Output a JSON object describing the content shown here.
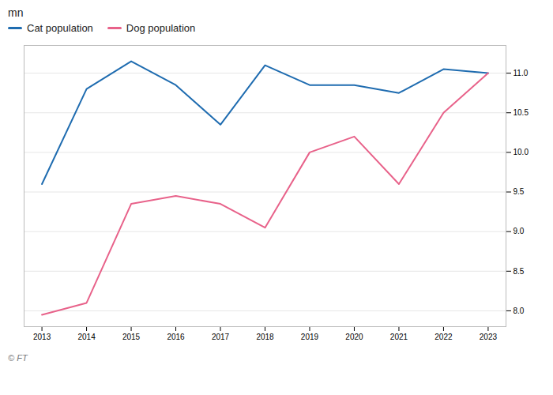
{
  "chart_data": {
    "type": "line",
    "ylabel": "mn",
    "x": [
      2013,
      2014,
      2015,
      2016,
      2017,
      2018,
      2019,
      2020,
      2021,
      2022,
      2023
    ],
    "series": [
      {
        "name": "Cat population",
        "color": "#1f6cb0",
        "values": [
          9.6,
          10.8,
          11.15,
          10.85,
          10.35,
          11.1,
          10.85,
          10.85,
          10.75,
          11.05,
          11.0
        ]
      },
      {
        "name": "Dog population",
        "color": "#e8628a",
        "values": [
          7.95,
          8.1,
          9.35,
          9.45,
          9.35,
          9.05,
          10.0,
          10.2,
          9.6,
          10.5,
          11.0
        ]
      }
    ],
    "xlim": [
      2012.6,
      2023.4
    ],
    "xticks": [
      2013,
      2014,
      2015,
      2016,
      2017,
      2018,
      2019,
      2020,
      2021,
      2022,
      2023
    ],
    "ylim": [
      7.8,
      11.35
    ],
    "yticks": [
      {
        "value": 8.0,
        "label": "8.0"
      },
      {
        "value": 8.5,
        "label": "8.5"
      },
      {
        "value": 9.0,
        "label": "9.0"
      },
      {
        "value": 9.5,
        "label": "9.5"
      },
      {
        "value": 10.0,
        "label": "10.0"
      },
      {
        "value": 10.5,
        "label": "10.5"
      },
      {
        "value": 11.0,
        "label": "11.0"
      }
    ],
    "grid": true,
    "legend": "upper left",
    "annotations": [
      "© FT"
    ]
  }
}
